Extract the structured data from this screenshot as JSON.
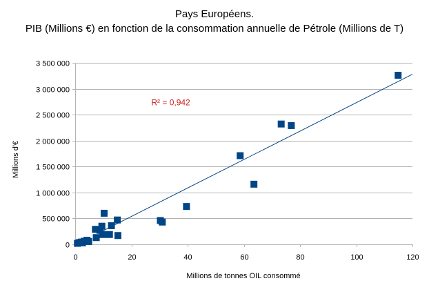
{
  "chart_data": {
    "type": "scatter",
    "title": "Pays Européens.",
    "subtitle": "PIB (Millions €) en fonction de la consommation annuelle de Pétrole (Millions de T)",
    "xlabel": "Millions de tonnes OIL consommé",
    "ylabel": "Millions d'€",
    "xlim": [
      0,
      120
    ],
    "ylim": [
      0,
      3500000
    ],
    "xticks": [
      0,
      20,
      40,
      60,
      80,
      100,
      120
    ],
    "yticks": [
      0,
      500000,
      1000000,
      1500000,
      2000000,
      2500000,
      3000000,
      3500000
    ],
    "xtick_labels": [
      "0",
      "20",
      "40",
      "60",
      "80",
      "100",
      "120"
    ],
    "ytick_labels": [
      "0",
      "500 000",
      "1 000 000",
      "1 500 000",
      "2 000 000",
      "2 500 000",
      "3 000 000",
      "3 500 000"
    ],
    "grid": "horizontal",
    "legend": "none",
    "marker": "square",
    "marker_color": "#004586",
    "trendline_color": "#004586",
    "annotation_color": "#c9211e",
    "points": [
      {
        "x": 0.8,
        "y": 20000
      },
      {
        "x": 1.5,
        "y": 35000
      },
      {
        "x": 2.2,
        "y": 45000
      },
      {
        "x": 2.6,
        "y": 30000
      },
      {
        "x": 3.2,
        "y": 60000
      },
      {
        "x": 4.2,
        "y": 80000
      },
      {
        "x": 4.8,
        "y": 55000
      },
      {
        "x": 7.2,
        "y": 290000
      },
      {
        "x": 7.5,
        "y": 130000
      },
      {
        "x": 8.8,
        "y": 270000
      },
      {
        "x": 9.5,
        "y": 350000
      },
      {
        "x": 9.8,
        "y": 190000
      },
      {
        "x": 10.3,
        "y": 600000
      },
      {
        "x": 12.2,
        "y": 190000
      },
      {
        "x": 12.9,
        "y": 360000
      },
      {
        "x": 15.0,
        "y": 470000
      },
      {
        "x": 15.2,
        "y": 170000
      },
      {
        "x": 30.3,
        "y": 460000
      },
      {
        "x": 31.0,
        "y": 430000
      },
      {
        "x": 39.6,
        "y": 730000
      },
      {
        "x": 58.7,
        "y": 1710000
      },
      {
        "x": 63.6,
        "y": 1160000
      },
      {
        "x": 73.3,
        "y": 2320000
      },
      {
        "x": 76.9,
        "y": 2290000
      },
      {
        "x": 114.9,
        "y": 3260000
      }
    ],
    "trendline": {
      "type": "linear",
      "x": [
        9.5,
        120
      ],
      "y": [
        250000,
        3280000
      ]
    },
    "annotations": [
      {
        "text": "R² = 0,942",
        "x": 34,
        "y": 2680000
      }
    ]
  }
}
